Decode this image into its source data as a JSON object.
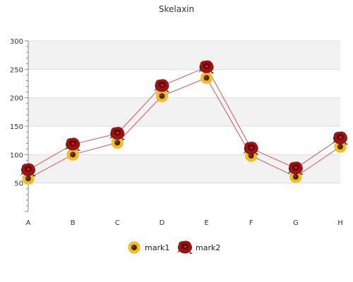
{
  "chart_data": {
    "type": "line",
    "title": "Skelaxin",
    "xlabel": "",
    "ylabel": "",
    "categories": [
      "A",
      "B",
      "C",
      "D",
      "E",
      "F",
      "G",
      "H"
    ],
    "ylim": [
      0,
      300
    ],
    "yticks": [
      50,
      100,
      150,
      200,
      250,
      300
    ],
    "grid": true,
    "legend": "bottom",
    "series": [
      {
        "name": "mark1",
        "values": [
          58,
          100,
          121,
          203,
          235,
          98,
          61,
          114
        ],
        "marker": "sunflower-icon",
        "color": "#d9534f"
      },
      {
        "name": "mark2",
        "values": [
          73,
          118,
          137,
          221,
          254,
          111,
          76,
          129
        ],
        "marker": "rose-icon",
        "color": "#d9534f"
      }
    ]
  }
}
